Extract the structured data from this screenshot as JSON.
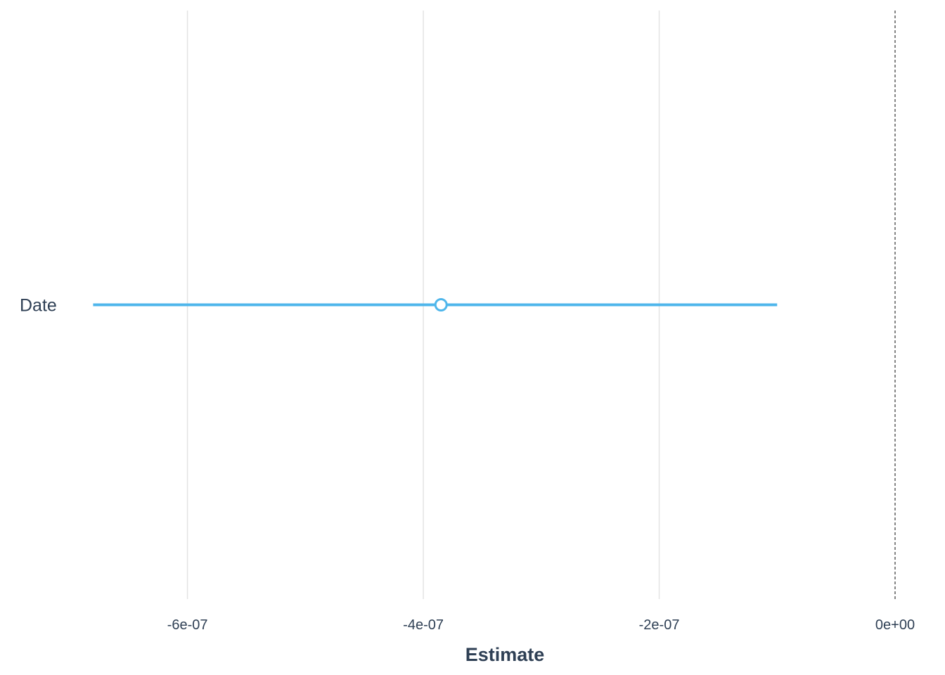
{
  "chart_data": {
    "type": "scatter",
    "style": "coefficient-plot",
    "xlabel": "Estimate",
    "ylabel": "",
    "xlim": [
      -7.5e-07,
      0
    ],
    "x_ticks": [
      -6e-07,
      -4e-07,
      -2e-07,
      0
    ],
    "x_tick_labels": [
      "-6e-07",
      "-4e-07",
      "-2e-07",
      "0e+00"
    ],
    "reference_line": {
      "x": 0,
      "style": "dashed"
    },
    "grid": "vertical major only",
    "legend": "none",
    "categories": [
      "Date"
    ],
    "points": [
      {
        "term": "Date",
        "estimate": -3.85e-07,
        "conf_low": -6.8e-07,
        "conf_high": -1e-07
      }
    ]
  },
  "colors": {
    "point": "#4FB6EB",
    "text": "#2E3F54",
    "grid": "#E3E3E3",
    "reference_line": "#333333"
  }
}
